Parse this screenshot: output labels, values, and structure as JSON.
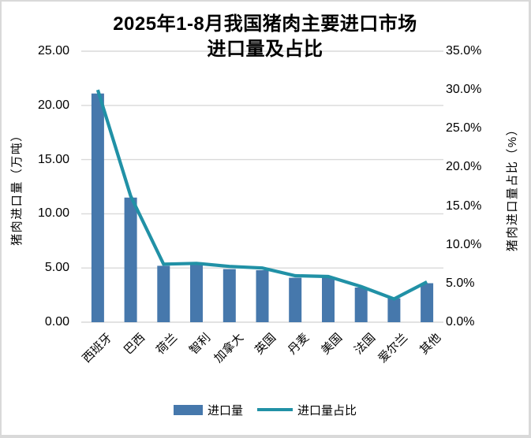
{
  "title": {
    "line1": "2025年1-8月我国猪肉主要进口市场",
    "line2": "进口量及占比"
  },
  "axes": {
    "left": {
      "title": "猪肉进口量（万吨）",
      "ticks": [
        "25.00",
        "20.00",
        "15.00",
        "10.00",
        "5.00",
        "0.00"
      ]
    },
    "right": {
      "title": "猪肉进口量占比（%）",
      "ticks": [
        "35.0%",
        "30.0%",
        "25.0%",
        "20.0%",
        "15.0%",
        "10.0%",
        "5.0%",
        "0.0%"
      ]
    }
  },
  "legend": {
    "bar_label": "进口量",
    "line_label": "进口量占比"
  },
  "colors": {
    "bar": "#4678ac",
    "line": "#2191a6",
    "grid": "#d9d9d9",
    "frame": "#d9d9d9",
    "text": "#000000",
    "background": "#ffffff"
  },
  "chart_data": {
    "type": "bar",
    "subtype": "combo-bar-line-dual-axis",
    "title": "2025年1-8月我国猪肉主要进口市场进口量及占比",
    "categories": [
      "西班牙",
      "巴西",
      "荷兰",
      "智利",
      "加拿大",
      "英国",
      "丹麦",
      "美国",
      "法国",
      "爱尔兰",
      "其他"
    ],
    "series": [
      {
        "name": "进口量",
        "type": "bar",
        "axis": "left",
        "unit": "万吨",
        "values": [
          21.1,
          11.5,
          5.2,
          5.3,
          4.9,
          4.8,
          4.1,
          4.1,
          3.2,
          2.2,
          3.6
        ]
      },
      {
        "name": "进口量占比",
        "type": "line",
        "axis": "right",
        "unit": "%",
        "values": [
          30.0,
          16.3,
          7.5,
          7.6,
          7.2,
          7.0,
          6.0,
          5.9,
          4.6,
          3.0,
          5.2
        ]
      }
    ],
    "ylabel_left": "猪肉进口量（万吨）",
    "ylabel_right": "猪肉进口量占比（%）",
    "ylim_left": [
      0,
      25
    ],
    "ylim_right": [
      0,
      35
    ],
    "left_tick_step": 5,
    "right_tick_step": 5,
    "grid": true,
    "legend_position": "bottom"
  }
}
